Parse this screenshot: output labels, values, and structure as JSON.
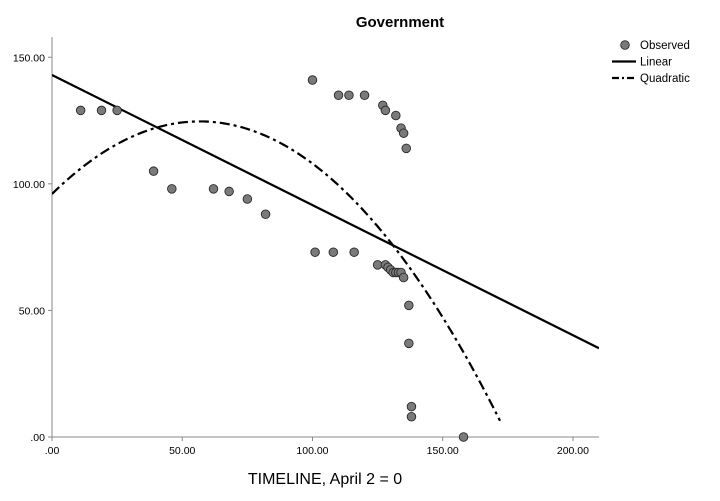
{
  "chart_data": {
    "type": "scatter",
    "title": "Government",
    "xlabel": "TIMELINE, April 2 = 0",
    "ylabel": "",
    "xlim": [
      0,
      210
    ],
    "ylim": [
      0,
      158
    ],
    "x_ticks": [
      ".00",
      "50.00",
      "100.00",
      "150.00",
      "200.00"
    ],
    "x_tick_values": [
      0,
      50,
      100,
      150,
      200
    ],
    "y_ticks": [
      ".00",
      "50.00",
      "100.00",
      "150.00"
    ],
    "y_tick_values": [
      0,
      50,
      100,
      150
    ],
    "grid": false,
    "legend_position": "top-right",
    "legend": [
      "Observed",
      "Linear",
      "Quadratic"
    ],
    "series": [
      {
        "name": "Observed",
        "kind": "points",
        "x": [
          11,
          19,
          25,
          39,
          46,
          62,
          68,
          75,
          82,
          100,
          101,
          108,
          110,
          114,
          116,
          120,
          125,
          127,
          128,
          128,
          129,
          130,
          131,
          132,
          132,
          133,
          134,
          134,
          135,
          135,
          136,
          137,
          137,
          138,
          138,
          158
        ],
        "y": [
          129,
          129,
          129,
          105,
          98,
          98,
          97,
          94,
          88,
          141,
          73,
          73,
          135,
          135,
          73,
          135,
          68,
          131,
          129,
          68,
          67,
          66,
          65,
          65,
          127,
          65,
          122,
          65,
          120,
          63,
          114,
          52,
          37,
          12,
          8,
          0
        ]
      },
      {
        "name": "Linear",
        "kind": "line",
        "intercept": 143,
        "slope": -0.514
      },
      {
        "name": "Quadratic",
        "kind": "curve",
        "a": 96,
        "b": 1.01,
        "c": -0.0089,
        "x_max": 172
      }
    ]
  }
}
